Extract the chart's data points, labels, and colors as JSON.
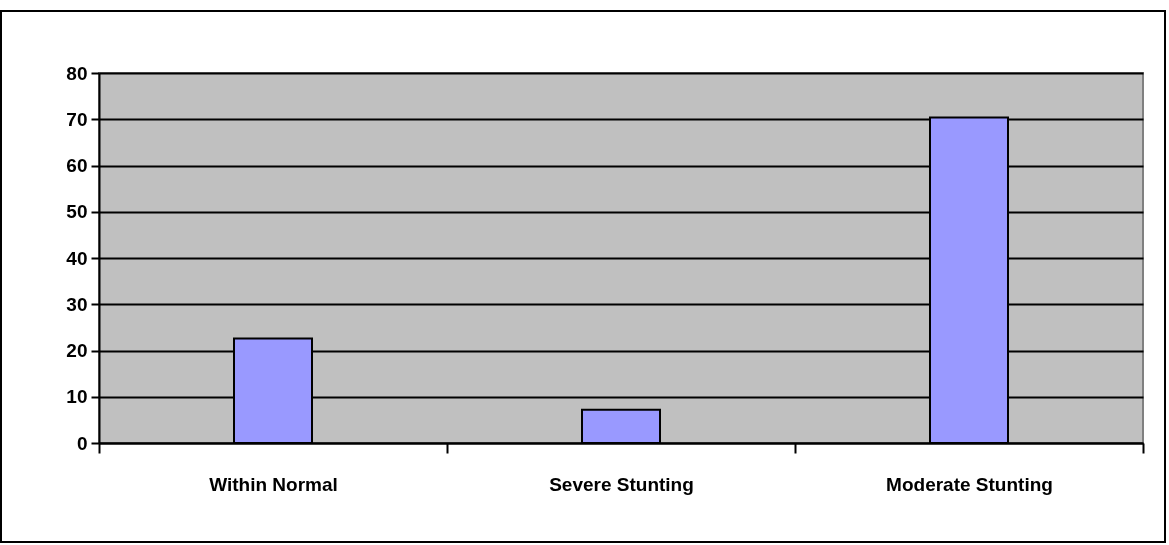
{
  "chart_data": {
    "type": "bar",
    "categories": [
      "Within Normal",
      "Severe Stunting",
      "Moderate Stunting"
    ],
    "values": [
      22.6,
      7.2,
      70.4
    ],
    "color": "#9999ff",
    "ylim": [
      0,
      80
    ],
    "yticks": [
      0,
      10,
      20,
      30,
      40,
      50,
      60,
      70,
      80
    ],
    "grid": "y"
  }
}
